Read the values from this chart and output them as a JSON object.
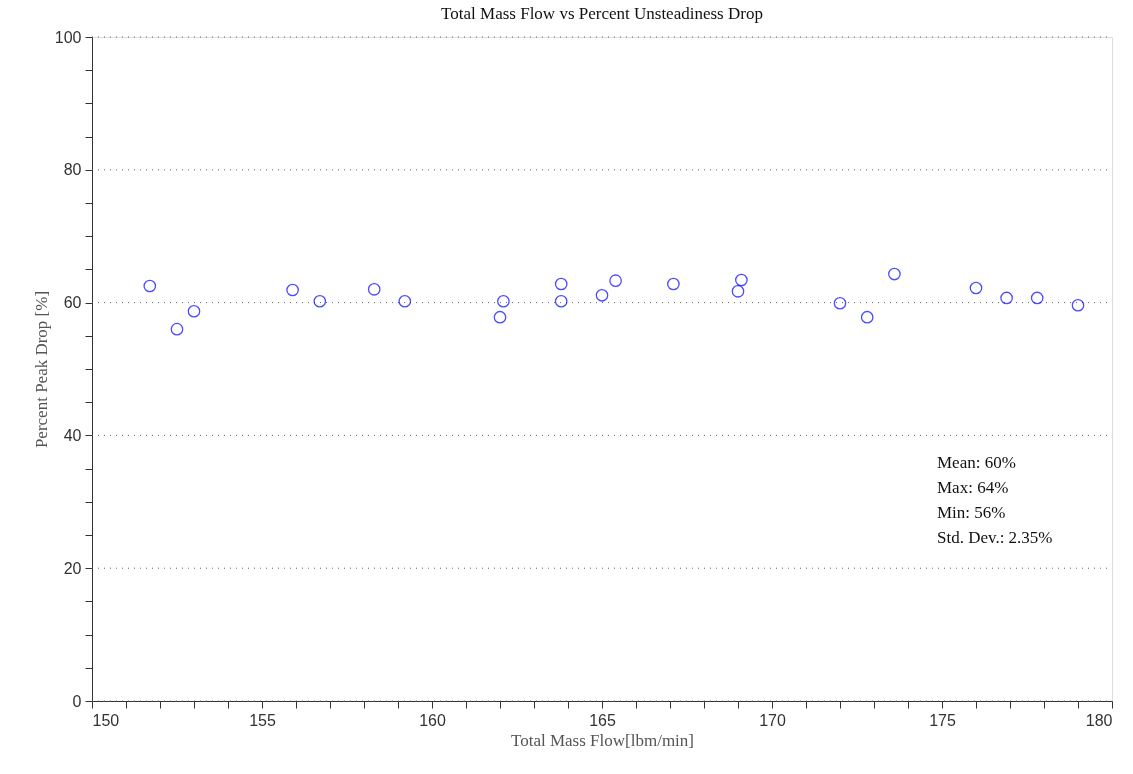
{
  "chart_data": {
    "type": "scatter",
    "title": "Total Mass Flow vs Percent Unsteadiness Drop",
    "xlabel": "Total Mass Flow[lbm/min]",
    "ylabel": "Percent Peak Drop [%]",
    "x": [
      151.7,
      152.5,
      153.0,
      155.9,
      156.7,
      158.3,
      159.2,
      162.0,
      162.1,
      163.8,
      163.8,
      165.0,
      165.4,
      167.1,
      169.0,
      169.1,
      172.0,
      172.8,
      173.6,
      176.0,
      176.9,
      177.8,
      179.0
    ],
    "series": [
      {
        "color": "#0000ff",
        "values": [
          62.5,
          56.0,
          58.7,
          61.9,
          60.2,
          62.0,
          60.2,
          57.8,
          60.2,
          62.8,
          60.2,
          61.1,
          63.3,
          62.8,
          61.7,
          63.4,
          59.9,
          57.8,
          64.3,
          62.2,
          60.7,
          60.7,
          59.6
        ]
      }
    ],
    "marker": "circle",
    "grid": "y",
    "xlim": [
      150,
      180
    ],
    "ylim": [
      0,
      100
    ],
    "xticks": [
      150,
      {
        "value": 151,
        "label": null
      },
      {
        "value": 152,
        "label": null
      },
      {
        "value": 153,
        "label": null
      },
      {
        "value": 154,
        "label": null
      },
      155,
      {
        "value": 156,
        "label": null
      },
      {
        "value": 157,
        "label": null
      },
      {
        "value": 158,
        "label": null
      },
      {
        "value": 159,
        "label": null
      },
      160,
      {
        "value": 161,
        "label": null
      },
      {
        "value": 162,
        "label": null
      },
      {
        "value": 163,
        "label": null
      },
      {
        "value": 164,
        "label": null
      },
      165,
      {
        "value": 166,
        "label": null
      },
      {
        "value": 167,
        "label": null
      },
      {
        "value": 168,
        "label": null
      },
      {
        "value": 169,
        "label": null
      },
      170,
      {
        "value": 171,
        "label": null
      },
      {
        "value": 172,
        "label": null
      },
      {
        "value": 173,
        "label": null
      },
      {
        "value": 174,
        "label": null
      },
      175,
      {
        "value": 176,
        "label": null
      },
      {
        "value": 177,
        "label": null
      },
      {
        "value": 178,
        "label": null
      },
      {
        "value": 179,
        "label": null
      },
      180
    ],
    "yticks": [
      0,
      {
        "value": 5,
        "label": null
      },
      {
        "value": 10,
        "label": null
      },
      {
        "value": 15,
        "label": null
      },
      20,
      {
        "value": 25,
        "label": null
      },
      {
        "value": 30,
        "label": null
      },
      {
        "value": 35,
        "label": null
      },
      40,
      {
        "value": 45,
        "label": null
      },
      {
        "value": 50,
        "label": null
      },
      {
        "value": 55,
        "label": null
      },
      60,
      {
        "value": 65,
        "label": null
      },
      {
        "value": 70,
        "label": null
      },
      {
        "value": 75,
        "label": null
      },
      80,
      {
        "value": 85,
        "label": null
      },
      {
        "value": 90,
        "label": null
      },
      {
        "value": 95,
        "label": null
      },
      100
    ],
    "annotations": [
      "Mean: 60%",
      "Max: 64%",
      "Min: 56%",
      "Std. Dev.: 2.35%"
    ]
  }
}
